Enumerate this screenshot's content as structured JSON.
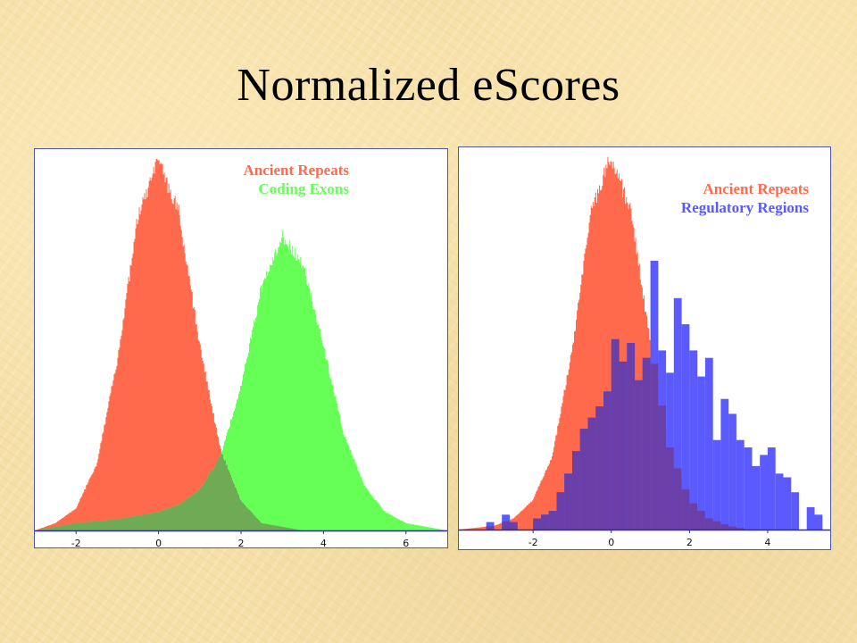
{
  "slide": {
    "title": "Normalized eScores"
  },
  "colors": {
    "ancient_repeats": "#ff6a4d",
    "coding_exons": "#66ff55",
    "regulatory_regions": "#5a5aff",
    "overlap_green": "#6faa55",
    "overlap_blue": "#6a3fa8"
  },
  "chart_data": [
    {
      "type": "area",
      "legend": [
        {
          "label": "Ancient Repeats",
          "color": "#ff6a4d"
        },
        {
          "label": "Coding Exons",
          "color": "#66ff55"
        }
      ],
      "legend_position": "top-right",
      "grid": false,
      "xlim": [
        -3.0,
        7.0
      ],
      "ylim": [
        0,
        1.0
      ],
      "xticks": [
        -2,
        0,
        2,
        4,
        6
      ],
      "xtick_labels": [
        "-2",
        "0",
        "2",
        "4",
        "6"
      ],
      "series": [
        {
          "name": "Ancient Repeats",
          "x": [
            -3.0,
            -2.5,
            -2.0,
            -1.5,
            -1.0,
            -0.5,
            0.0,
            0.5,
            1.0,
            1.5,
            2.0,
            2.5,
            3.0,
            3.5
          ],
          "y": [
            0.0,
            0.02,
            0.06,
            0.18,
            0.46,
            0.85,
            1.0,
            0.86,
            0.5,
            0.22,
            0.08,
            0.02,
            0.01,
            0.0
          ]
        },
        {
          "name": "Coding Exons",
          "x": [
            -3.0,
            -2.0,
            -1.0,
            0.0,
            0.5,
            1.0,
            1.5,
            2.0,
            2.5,
            3.0,
            3.5,
            4.0,
            4.5,
            5.0,
            5.5,
            6.0,
            6.5,
            7.0
          ],
          "y": [
            0.0,
            0.02,
            0.03,
            0.05,
            0.07,
            0.11,
            0.2,
            0.39,
            0.66,
            0.8,
            0.72,
            0.5,
            0.26,
            0.12,
            0.05,
            0.02,
            0.01,
            0.0
          ]
        }
      ]
    },
    {
      "type": "bar",
      "legend": [
        {
          "label": "Ancient Repeats",
          "color": "#ff6a4d"
        },
        {
          "label": "Regulatory Regions",
          "color": "#5a5aff"
        }
      ],
      "legend_position": "top-right",
      "grid": false,
      "xlim": [
        -3.9,
        5.6
      ],
      "ylim": [
        0,
        1.0
      ],
      "xticks": [
        -2,
        0,
        2,
        4
      ],
      "xtick_labels": [
        "-2",
        "0",
        "2",
        "4"
      ],
      "series": [
        {
          "name": "Ancient Repeats",
          "kind": "area",
          "x": [
            -3.9,
            -3.0,
            -2.5,
            -2.0,
            -1.5,
            -1.0,
            -0.5,
            0.0,
            0.5,
            1.0,
            1.5,
            2.0,
            2.5,
            3.0,
            3.5,
            4.0
          ],
          "y": [
            0.0,
            0.01,
            0.03,
            0.08,
            0.2,
            0.48,
            0.86,
            1.0,
            0.85,
            0.5,
            0.22,
            0.08,
            0.03,
            0.01,
            0.0,
            0.0
          ]
        },
        {
          "name": "Regulatory Regions",
          "kind": "histogram",
          "bin_width": 0.2,
          "bin_starts": [
            -3.2,
            -3.0,
            -2.8,
            -2.6,
            -2.4,
            -2.2,
            -2.0,
            -1.8,
            -1.6,
            -1.4,
            -1.2,
            -1.0,
            -0.8,
            -0.6,
            -0.4,
            -0.2,
            0.0,
            0.2,
            0.4,
            0.6,
            0.8,
            1.0,
            1.2,
            1.4,
            1.6,
            1.8,
            2.0,
            2.2,
            2.4,
            2.6,
            2.8,
            3.0,
            3.2,
            3.4,
            3.6,
            3.8,
            4.0,
            4.2,
            4.4,
            4.6,
            4.8,
            5.0,
            5.2
          ],
          "values": [
            0.02,
            0.0,
            0.04,
            0.02,
            0.0,
            0.0,
            0.03,
            0.04,
            0.05,
            0.1,
            0.15,
            0.21,
            0.27,
            0.3,
            0.33,
            0.37,
            0.51,
            0.45,
            0.5,
            0.4,
            0.46,
            0.72,
            0.48,
            0.42,
            0.62,
            0.55,
            0.48,
            0.41,
            0.46,
            0.24,
            0.35,
            0.31,
            0.24,
            0.22,
            0.17,
            0.2,
            0.22,
            0.15,
            0.14,
            0.1,
            0.0,
            0.06,
            0.04
          ]
        }
      ]
    }
  ]
}
